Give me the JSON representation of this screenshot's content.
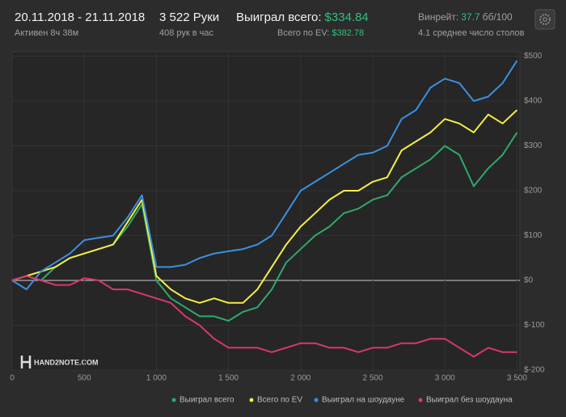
{
  "header": {
    "date_range": "20.11.2018 - 21.11.2018",
    "active": "Активен 8ч 38м",
    "hands": "3 522 Руки",
    "hands_per_hour": "408 рук в час",
    "won_label": "Выиграл всего:",
    "won_value": "$334.84",
    "ev_label": "Всего по EV:",
    "ev_value": "$382.78",
    "winrate_label": "Винрейт:",
    "winrate_value": "37.7",
    "winrate_unit": "бб/100",
    "tables": "4.1 среднее число столов"
  },
  "watermark": "HAND2NOTE.COM",
  "chart_data": {
    "type": "line",
    "legend": "bottom",
    "grid": true,
    "x": [
      0,
      100,
      200,
      300,
      400,
      500,
      600,
      700,
      800,
      900,
      1000,
      1100,
      1200,
      1300,
      1400,
      1500,
      1600,
      1700,
      1800,
      1900,
      2000,
      2100,
      2200,
      2300,
      2400,
      2500,
      2600,
      2700,
      2800,
      2900,
      3000,
      3100,
      3200,
      3300,
      3400,
      3500
    ],
    "xlim": [
      0,
      3520
    ],
    "xticks": [
      0,
      500,
      {
        "value": 1000,
        "label": "1 000"
      },
      {
        "value": 1500,
        "label": "1 500"
      },
      {
        "value": 2000,
        "label": "2 000"
      },
      {
        "value": 2500,
        "label": "2 500"
      },
      {
        "value": 3000,
        "label": "3 000"
      },
      {
        "value": 3500,
        "label": "3 500"
      }
    ],
    "ylim": [
      -200,
      510
    ],
    "yticks": [
      {
        "value": -200,
        "label": "$-200"
      },
      {
        "value": -100,
        "label": "$-100"
      },
      {
        "value": 0,
        "label": "$0"
      },
      {
        "value": 100,
        "label": "$100"
      },
      {
        "value": 200,
        "label": "$200"
      },
      {
        "value": 300,
        "label": "$300"
      },
      {
        "value": 400,
        "label": "$400"
      },
      {
        "value": 500,
        "label": "$500"
      }
    ],
    "series": [
      {
        "name": "Выиграл всего",
        "color": "#2faa6a",
        "values": [
          0,
          10,
          0,
          30,
          50,
          60,
          70,
          80,
          120,
          170,
          0,
          -40,
          -60,
          -80,
          -80,
          -90,
          -70,
          -60,
          -20,
          40,
          70,
          100,
          120,
          150,
          160,
          180,
          190,
          230,
          250,
          270,
          300,
          280,
          210,
          250,
          280,
          330
        ]
      },
      {
        "name": "Всего по EV",
        "color": "#f3ee45",
        "values": [
          0,
          10,
          20,
          30,
          50,
          60,
          70,
          80,
          130,
          180,
          10,
          -20,
          -40,
          -50,
          -40,
          -50,
          -50,
          -20,
          30,
          80,
          120,
          150,
          180,
          200,
          200,
          220,
          230,
          290,
          310,
          330,
          360,
          350,
          330,
          370,
          350,
          380
        ]
      },
      {
        "name": "Выиграл на шоудауне",
        "color": "#3d8fe2",
        "values": [
          0,
          -20,
          20,
          40,
          60,
          90,
          95,
          100,
          140,
          190,
          30,
          30,
          35,
          50,
          60,
          65,
          70,
          80,
          100,
          150,
          200,
          220,
          240,
          260,
          280,
          285,
          300,
          360,
          380,
          430,
          450,
          440,
          400,
          410,
          440,
          490
        ]
      },
      {
        "name": "Выиграл без шоудауна",
        "color": "#d8386b",
        "values": [
          0,
          10,
          0,
          -10,
          -10,
          5,
          0,
          -20,
          -20,
          -30,
          -40,
          -50,
          -80,
          -100,
          -130,
          -150,
          -150,
          -150,
          -160,
          -150,
          -140,
          -140,
          -150,
          -150,
          -160,
          -150,
          -150,
          -140,
          -140,
          -130,
          -130,
          -150,
          -170,
          -150,
          -160,
          -160
        ]
      }
    ]
  }
}
